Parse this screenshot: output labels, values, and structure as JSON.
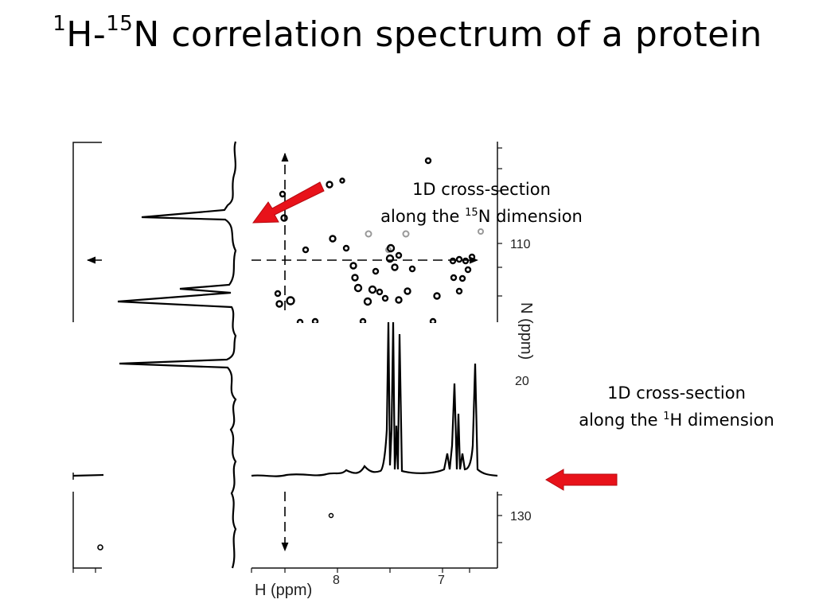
{
  "title": {
    "prefix_sup": "1",
    "main1": "H-",
    "sup2": "15",
    "main2": "N correlation spectrum of a protein"
  },
  "callouts": {
    "n_dimension": {
      "line1": "1D cross-section",
      "line2_pre": "along the ",
      "line2_sup": "15",
      "line2_post": "N dimension"
    },
    "h_dimension": {
      "line1": "1D cross-section",
      "line2_pre": "along the ",
      "line2_sup": "1",
      "line2_post": "H dimension"
    }
  },
  "axes": {
    "n15_axis_label": "N (ppm)",
    "n15_ticks": [
      "110",
      "20",
      "130"
    ],
    "h1_axis_label": "H (ppm)",
    "h1_ticks": [
      "8",
      "7"
    ]
  },
  "colors": {
    "arrow": "#e8121a",
    "ink": "#000000"
  }
}
